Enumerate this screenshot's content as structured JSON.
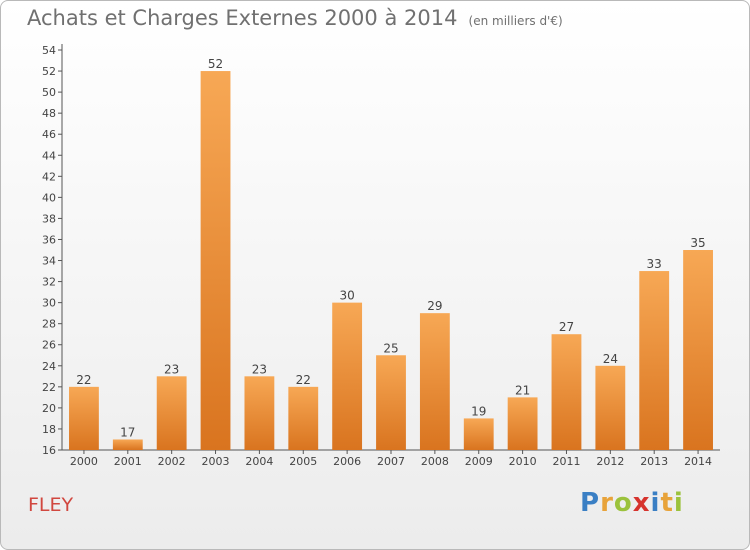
{
  "title": "Achats et Charges Externes 2000 à 2014",
  "subtitle": "(en milliers d'€)",
  "commune": "FLEY",
  "brand": {
    "text": "Proxiti",
    "letters": [
      {
        "ch": "P",
        "color": "#3a7fc4"
      },
      {
        "ch": "r",
        "color": "#e8a33a"
      },
      {
        "ch": "o",
        "color": "#9bc23c"
      },
      {
        "ch": "x",
        "color": "#d6332d"
      },
      {
        "ch": "i",
        "color": "#3a7fc4"
      },
      {
        "ch": "t",
        "color": "#e8a33a"
      },
      {
        "ch": "i",
        "color": "#9bc23c"
      }
    ]
  },
  "chart_data": {
    "type": "bar",
    "categories": [
      "2000",
      "2001",
      "2002",
      "2003",
      "2004",
      "2005",
      "2006",
      "2007",
      "2008",
      "2009",
      "2010",
      "2011",
      "2012",
      "2013",
      "2014"
    ],
    "values": [
      22,
      17,
      23,
      52,
      23,
      22,
      30,
      25,
      29,
      19,
      21,
      27,
      24,
      33,
      35
    ],
    "ylim": [
      16,
      54
    ],
    "yticks": [
      16,
      18,
      20,
      22,
      24,
      26,
      28,
      30,
      32,
      34,
      36,
      38,
      40,
      42,
      44,
      46,
      48,
      50,
      52,
      54
    ],
    "grid": false,
    "bar_color_light": "#f7a855",
    "bar_color_dark": "#d9741f",
    "show_value_labels": true
  }
}
